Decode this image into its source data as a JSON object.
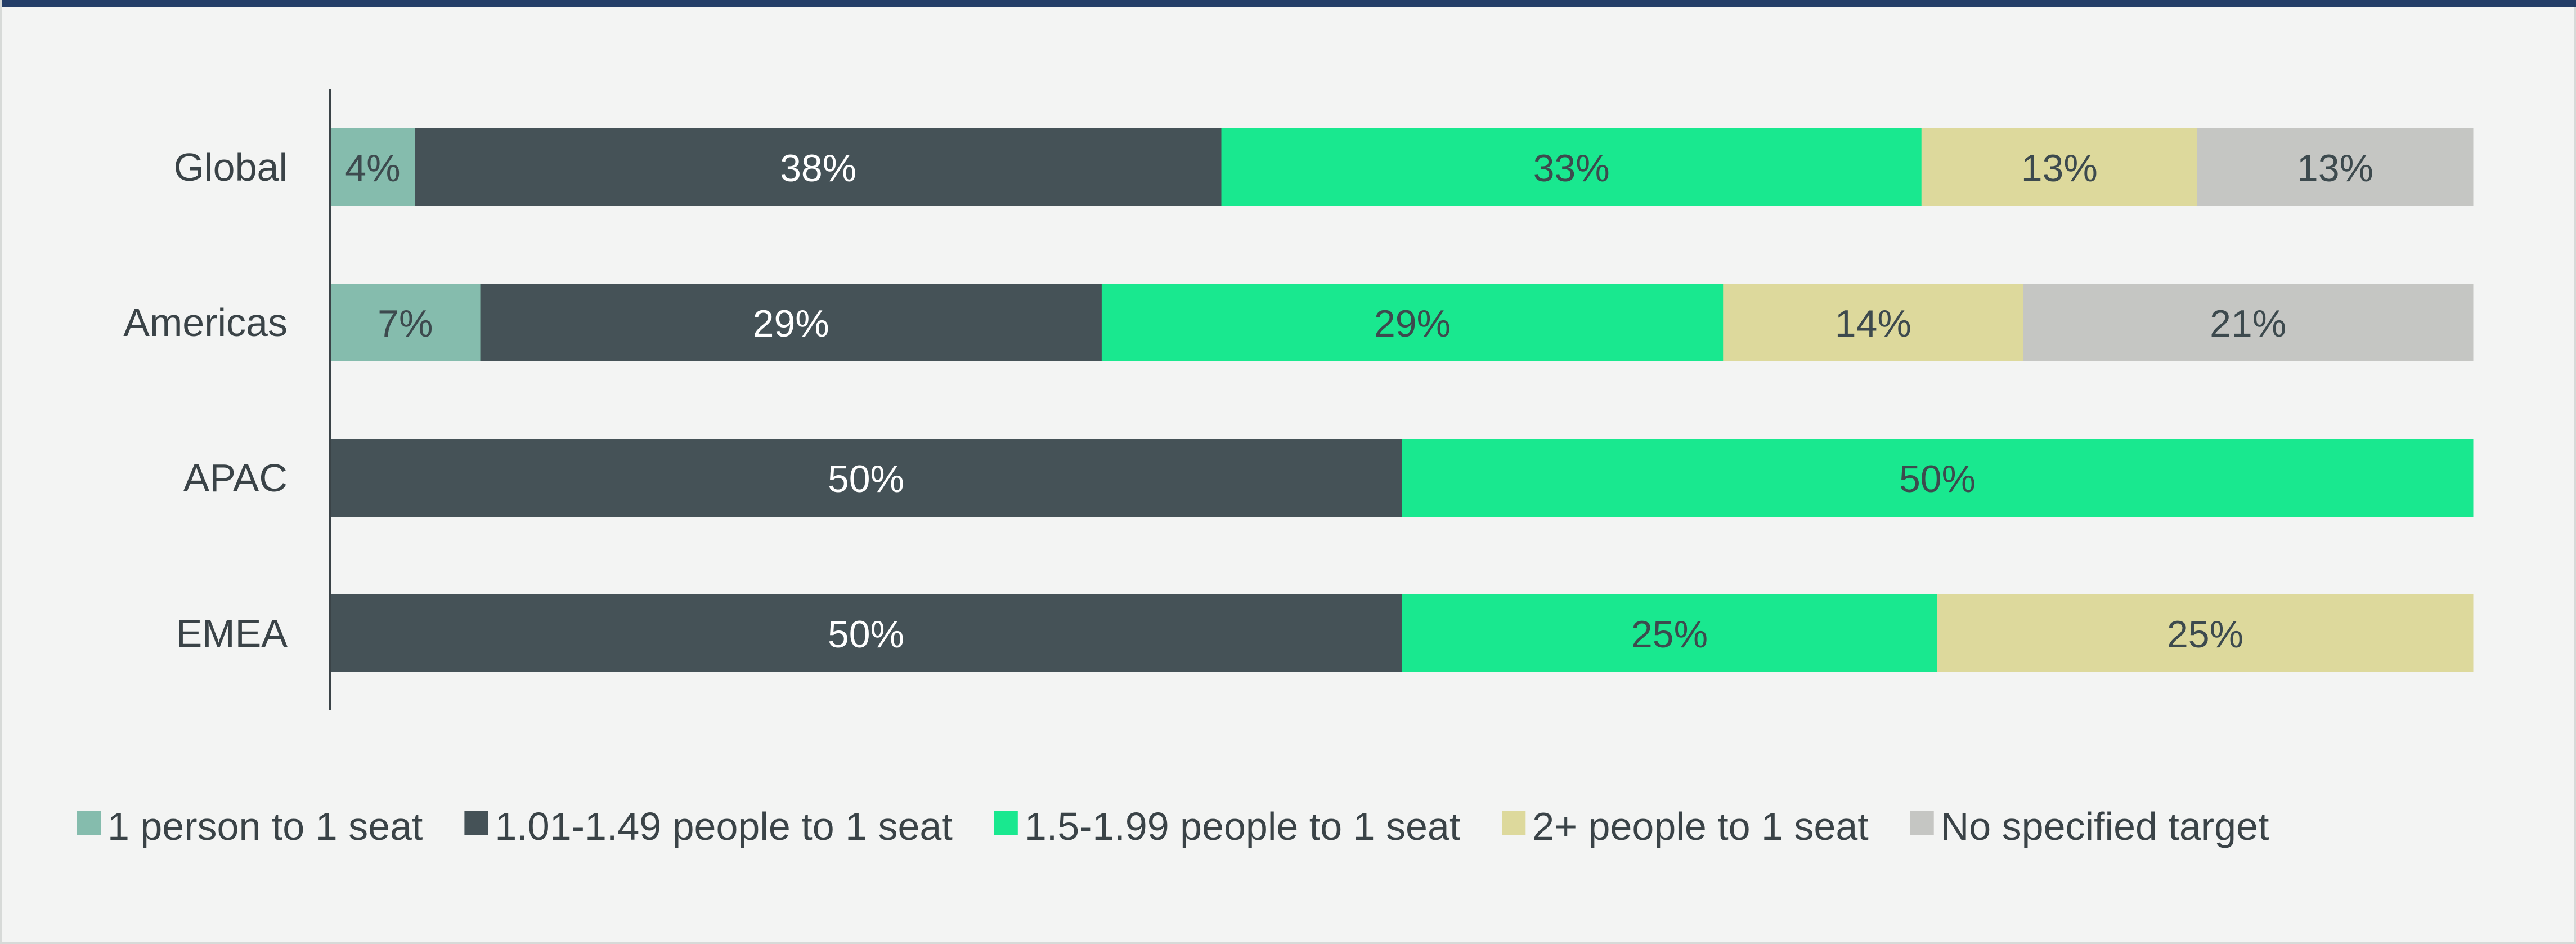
{
  "chart_data": {
    "type": "bar",
    "orientation": "horizontal",
    "stacked": true,
    "percent_stacked": true,
    "categories": [
      "Global",
      "Americas",
      "APAC",
      "EMEA"
    ],
    "series": [
      {
        "name": "1 person to 1 seat",
        "color": "#85bcad",
        "label_color": "#3d4a4e",
        "values": [
          4,
          7,
          0,
          0
        ]
      },
      {
        "name": "1.01-1.49 people to 1 seat",
        "color": "#455257",
        "label_color": "#ffffff",
        "values": [
          38,
          29,
          50,
          50
        ]
      },
      {
        "name": "1.5-1.99 people to 1 seat",
        "color": "#19e88f",
        "label_color": "#3d4a4e",
        "values": [
          33,
          29,
          50,
          25
        ]
      },
      {
        "name": "2+ people to 1 seat",
        "color": "#ddd99c",
        "label_color": "#3d4a4e",
        "values": [
          13,
          14,
          0,
          25
        ]
      },
      {
        "name": "No specified target",
        "color": "#c5c6c3",
        "label_color": "#3d4a4e",
        "values": [
          13,
          21,
          0,
          0
        ]
      }
    ],
    "value_format": "{v}%",
    "xlim": [
      0,
      100
    ],
    "grid": false,
    "legend": "bottom",
    "title": "",
    "xlabel": "",
    "ylabel": ""
  },
  "colors": {
    "background": "#f3f4f3",
    "top_rule": "#243e68",
    "axis": "#3a4347",
    "text": "#3a4347"
  }
}
